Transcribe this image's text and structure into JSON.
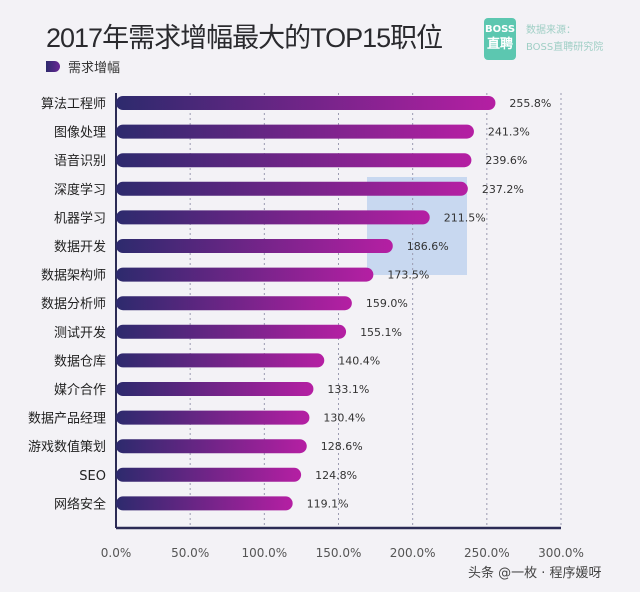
{
  "header": {
    "title": "2017年需求增幅最大的TOP15职位",
    "logo_top": "BOSS",
    "logo_bottom": "直聘",
    "source_label": "数据来源：",
    "source_value": "BOSS直聘研究院"
  },
  "credit": "头条 @一枚 · 程序媛呀",
  "colors": {
    "bar_start": "#2d2a6d",
    "bar_end": "#b51fa3"
  },
  "chart_data": {
    "type": "bar",
    "orientation": "horizontal",
    "title": "2017年需求增幅最大的TOP15职位",
    "legend": [
      "需求增幅"
    ],
    "legend_position": "top-left",
    "categories": [
      "算法工程师",
      "图像处理",
      "语音识别",
      "深度学习",
      "机器学习",
      "数据开发",
      "数据架构师",
      "数据分析师",
      "测试开发",
      "数据仓库",
      "媒介合作",
      "数据产品经理",
      "游戏数值策划",
      "SEO",
      "网络安全"
    ],
    "series": [
      {
        "name": "需求增幅",
        "values": [
          255.8,
          241.3,
          239.6,
          237.2,
          211.5,
          186.6,
          173.5,
          159.0,
          155.1,
          140.4,
          133.1,
          130.4,
          128.6,
          124.8,
          119.1
        ]
      }
    ],
    "data_labels": [
      "255.8%",
      "241.3%",
      "239.6%",
      "237.2%",
      "211.5%",
      "186.6%",
      "173.5%",
      "159.0%",
      "155.1%",
      "140.4%",
      "133.1%",
      "130.4%",
      "128.6%",
      "124.8%",
      "119.1%"
    ],
    "xlim": [
      0,
      300
    ],
    "x_ticks": [
      "0.0%",
      "50.0%",
      "100.0%",
      "150.0%",
      "200.0%",
      "250.0%",
      "300.0%"
    ],
    "grid": "vertical dotted"
  }
}
